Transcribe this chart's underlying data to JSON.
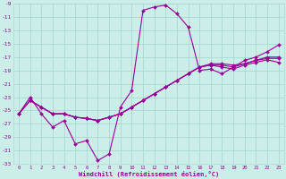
{
  "xlabel": "Windchill (Refroidissement éolien,°C)",
  "background_color": "#cceee8",
  "grid_color": "#aad8d2",
  "line_color": "#990099",
  "xlim": [
    -0.5,
    23.5
  ],
  "ylim": [
    -33,
    -9
  ],
  "xticks": [
    0,
    1,
    2,
    3,
    4,
    5,
    6,
    7,
    8,
    9,
    10,
    11,
    12,
    13,
    14,
    15,
    16,
    17,
    18,
    19,
    20,
    21,
    22,
    23
  ],
  "yticks": [
    -33,
    -31,
    -29,
    -27,
    -25,
    -23,
    -21,
    -19,
    -17,
    -15,
    -13,
    -11,
    -9
  ],
  "series": [
    {
      "x": [
        0,
        1,
        2,
        3,
        4,
        5,
        6,
        7,
        8,
        9,
        10,
        11,
        12,
        13,
        14,
        15,
        16,
        17,
        18,
        19,
        20,
        21,
        22,
        23
      ],
      "y": [
        -25.5,
        -23.0,
        -25.5,
        -27.5,
        -26.5,
        -30.0,
        -29.5,
        -32.5,
        -31.5,
        -24.5,
        -22.0,
        -10.0,
        -9.5,
        -9.2,
        -10.5,
        -12.5,
        -19.0,
        -18.8,
        -19.5,
        -18.5,
        -17.5,
        -17.0,
        -16.2,
        -15.2
      ]
    },
    {
      "x": [
        0,
        1,
        2,
        3,
        4,
        5,
        6,
        7,
        8,
        9,
        10,
        11,
        12,
        13,
        14,
        15,
        16,
        17,
        18,
        19,
        20,
        21,
        22,
        23
      ],
      "y": [
        -25.5,
        -23.5,
        -24.5,
        -25.5,
        -25.5,
        -26.0,
        -26.2,
        -26.5,
        -26.0,
        -25.5,
        -24.5,
        -23.5,
        -22.5,
        -21.5,
        -20.5,
        -19.5,
        -18.5,
        -18.2,
        -18.5,
        -18.8,
        -18.2,
        -17.8,
        -17.4,
        -17.8
      ]
    },
    {
      "x": [
        0,
        1,
        2,
        3,
        4,
        5,
        6,
        7,
        8,
        9,
        10,
        11,
        12,
        13,
        14,
        15,
        16,
        17,
        18,
        19,
        20,
        21,
        22,
        23
      ],
      "y": [
        -25.5,
        -23.5,
        -24.5,
        -25.5,
        -25.5,
        -26.0,
        -26.2,
        -26.5,
        -26.0,
        -25.5,
        -24.5,
        -23.5,
        -22.5,
        -21.5,
        -20.5,
        -19.5,
        -18.5,
        -18.2,
        -18.2,
        -18.5,
        -18.0,
        -17.5,
        -17.2,
        -17.2
      ]
    },
    {
      "x": [
        0,
        1,
        2,
        3,
        4,
        5,
        6,
        7,
        8,
        9,
        10,
        11,
        12,
        13,
        14,
        15,
        16,
        17,
        18,
        19,
        20,
        21,
        22,
        23
      ],
      "y": [
        -25.5,
        -23.5,
        -24.5,
        -25.5,
        -25.5,
        -26.0,
        -26.2,
        -26.5,
        -26.0,
        -25.5,
        -24.5,
        -23.5,
        -22.5,
        -21.5,
        -20.5,
        -19.5,
        -18.5,
        -18.0,
        -18.0,
        -18.2,
        -18.0,
        -17.5,
        -17.0,
        -17.0
      ]
    }
  ]
}
